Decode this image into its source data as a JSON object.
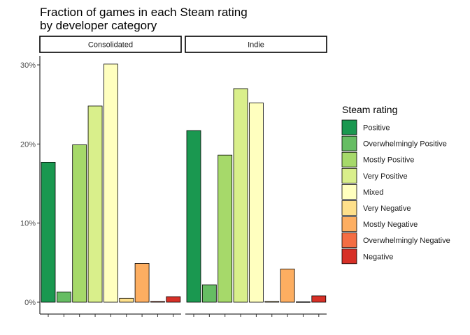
{
  "chart_data": {
    "type": "bar",
    "title_lines": [
      "Fraction of games in each Steam rating",
      "by developer category"
    ],
    "xlabel": "",
    "ylabel": "",
    "ylim": [
      0,
      0.32
    ],
    "yticks": [
      0,
      0.1,
      0.2,
      0.3
    ],
    "ytick_labels": [
      "0%",
      "10%",
      "20%",
      "30%"
    ],
    "grid": false,
    "legend_position": "right",
    "legend_title": "Steam rating",
    "categories": [
      "Positive",
      "Overwhelmingly Positive",
      "Mostly Positive",
      "Very Positive",
      "Mixed",
      "Very Negative",
      "Mostly Negative",
      "Overwhelmingly Negative",
      "Negative"
    ],
    "colors": [
      "#1a9850",
      "#66bd63",
      "#a6d96a",
      "#d9ef8b",
      "#ffffbf",
      "#fee08b",
      "#fdae61",
      "#f46d43",
      "#d73027"
    ],
    "panels": [
      {
        "name": "Consolidated",
        "values": [
          0.177,
          0.013,
          0.199,
          0.248,
          0.301,
          0.005,
          0.049,
          0.001,
          0.007
        ]
      },
      {
        "name": "Indie",
        "values": [
          0.217,
          0.022,
          0.186,
          0.27,
          0.252,
          0.001,
          0.042,
          0.0005,
          0.008
        ]
      }
    ]
  }
}
